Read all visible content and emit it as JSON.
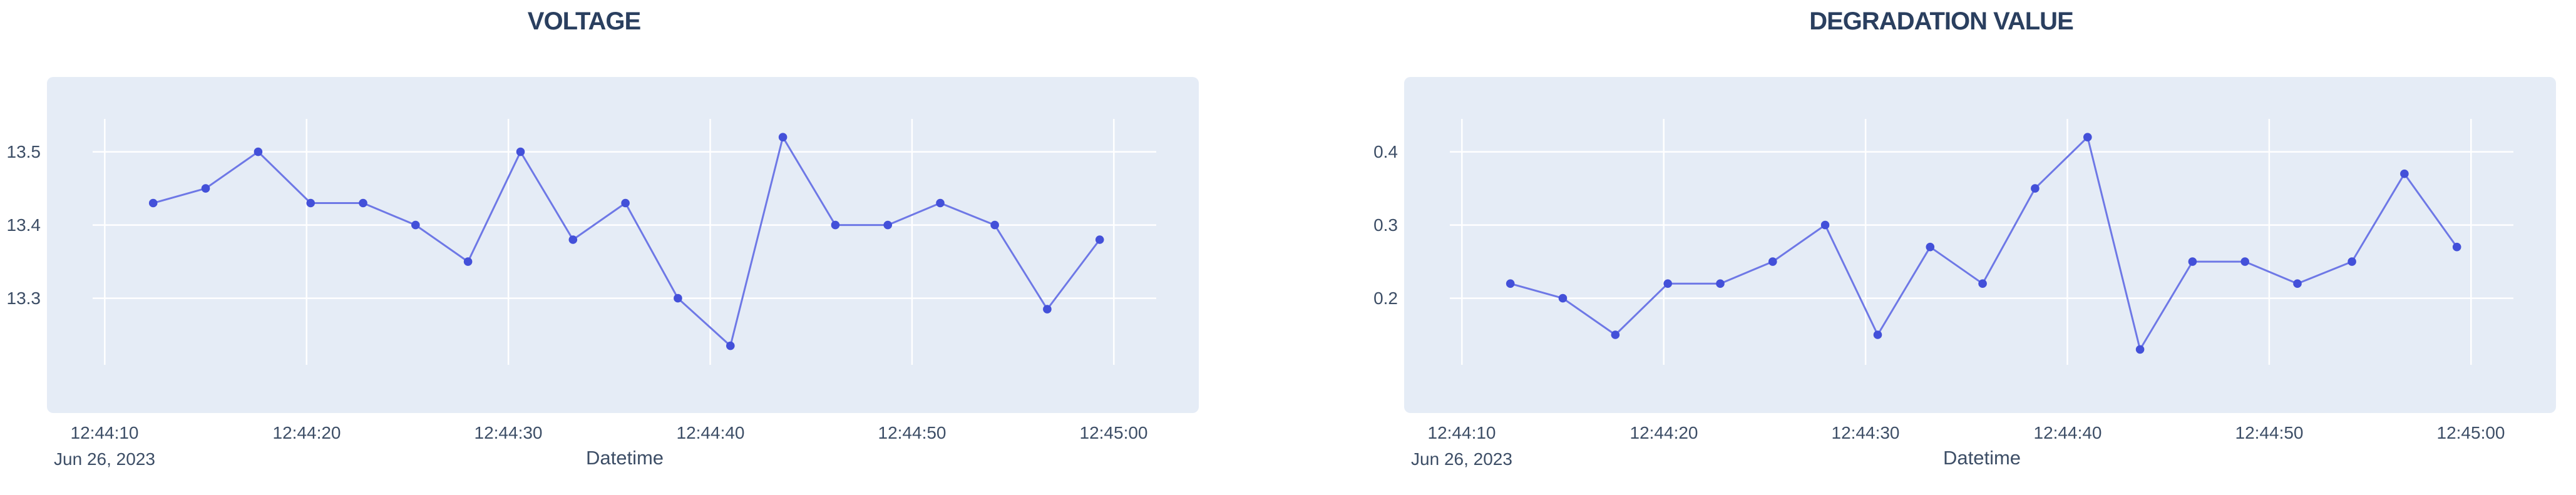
{
  "page": {
    "background": "#ffffff"
  },
  "colors": {
    "card_bg": "#e5ecf6",
    "grid": "#ffffff",
    "line": "#6e78e6",
    "marker": "#4350d9",
    "title_text": "#2a3f5f",
    "tick_text": "#3d4e66"
  },
  "chart_data": [
    {
      "type": "line",
      "title": "VOLTAGE",
      "xlabel": "Datetime",
      "x_date_label": "Jun 26, 2023",
      "legend": "none",
      "grid": true,
      "marker_shape": "circle",
      "x_tick_labels": [
        "12:44:10",
        "12:44:20",
        "12:44:30",
        "12:44:40",
        "12:44:50",
        "12:45:00"
      ],
      "x_tick_seconds": [
        10,
        20,
        30,
        40,
        50,
        60
      ],
      "x_seconds": [
        12.4,
        15.0,
        17.6,
        20.2,
        22.8,
        25.4,
        28.0,
        30.6,
        33.2,
        35.8,
        38.4,
        41.0,
        43.6,
        46.2,
        48.8,
        51.4,
        54.1,
        56.7,
        59.3
      ],
      "values": [
        13.43,
        13.45,
        13.5,
        13.43,
        13.43,
        13.4,
        13.35,
        13.5,
        13.38,
        13.43,
        13.3,
        13.235,
        13.52,
        13.4,
        13.4,
        13.43,
        13.4,
        13.285,
        13.38
      ],
      "xlim": [
        9.4,
        62.1
      ],
      "ylim": [
        13.209,
        13.545
      ],
      "yticks": [
        13.5,
        13.4,
        13.3
      ],
      "ytick_labels": [
        "13.5",
        "13.4",
        "13.3"
      ]
    },
    {
      "type": "line",
      "title": "DEGRADATION VALUE",
      "xlabel": "Datetime",
      "x_date_label": "Jun 26, 2023",
      "legend": "none",
      "grid": true,
      "marker_shape": "circle",
      "x_tick_labels": [
        "12:44:10",
        "12:44:20",
        "12:44:30",
        "12:44:40",
        "12:44:50",
        "12:45:00"
      ],
      "x_tick_seconds": [
        10,
        20,
        30,
        40,
        50,
        60
      ],
      "x_seconds": [
        12.4,
        15.0,
        17.6,
        20.2,
        22.8,
        25.4,
        28.0,
        30.6,
        33.2,
        35.8,
        38.4,
        41.0,
        43.6,
        46.2,
        48.8,
        51.4,
        54.1,
        56.7,
        59.3
      ],
      "values": [
        0.22,
        0.2,
        0.15,
        0.22,
        0.22,
        0.25,
        0.3,
        0.15,
        0.27,
        0.22,
        0.35,
        0.42,
        0.13,
        0.25,
        0.25,
        0.22,
        0.25,
        0.37,
        0.27
      ],
      "xlim": [
        9.4,
        62.1
      ],
      "ylim": [
        0.109,
        0.445
      ],
      "yticks": [
        0.4,
        0.3,
        0.2
      ],
      "ytick_labels": [
        "0.4",
        "0.3",
        "0.2"
      ]
    }
  ]
}
